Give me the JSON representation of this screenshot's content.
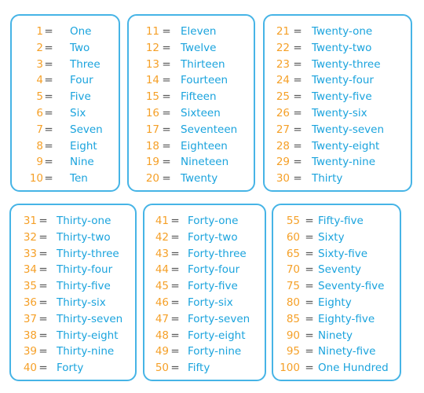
{
  "colors": {
    "border": "#46b4e6",
    "number": "#f5a028",
    "word": "#1aa3dd",
    "equals": "#555555"
  },
  "equals_sign": "=",
  "cards": [
    {
      "rows": [
        {
          "num": "1",
          "word": "One"
        },
        {
          "num": "2",
          "word": "Two"
        },
        {
          "num": "3",
          "word": "Three"
        },
        {
          "num": "4",
          "word": "Four"
        },
        {
          "num": "5",
          "word": "Five"
        },
        {
          "num": "6",
          "word": "Six"
        },
        {
          "num": "7",
          "word": "Seven"
        },
        {
          "num": "8",
          "word": "Eight"
        },
        {
          "num": "9",
          "word": "Nine"
        },
        {
          "num": "10",
          "word": "Ten"
        }
      ]
    },
    {
      "rows": [
        {
          "num": "11",
          "word": "Eleven"
        },
        {
          "num": "12",
          "word": "Twelve"
        },
        {
          "num": "13",
          "word": "Thirteen"
        },
        {
          "num": "14",
          "word": "Fourteen"
        },
        {
          "num": "15",
          "word": "Fifteen"
        },
        {
          "num": "16",
          "word": "Sixteen"
        },
        {
          "num": "17",
          "word": "Seventeen"
        },
        {
          "num": "18",
          "word": "Eighteen"
        },
        {
          "num": "19",
          "word": "Nineteen"
        },
        {
          "num": "20",
          "word": "Twenty"
        }
      ]
    },
    {
      "rows": [
        {
          "num": "21",
          "word": "Twenty-one"
        },
        {
          "num": "22",
          "word": "Twenty-two"
        },
        {
          "num": "23",
          "word": "Twenty-three"
        },
        {
          "num": "24",
          "word": "Twenty-four"
        },
        {
          "num": "25",
          "word": "Twenty-five"
        },
        {
          "num": "26",
          "word": "Twenty-six"
        },
        {
          "num": "27",
          "word": "Twenty-seven"
        },
        {
          "num": "28",
          "word": "Twenty-eight"
        },
        {
          "num": "29",
          "word": "Twenty-nine"
        },
        {
          "num": "30",
          "word": "Thirty"
        }
      ]
    },
    {
      "rows": [
        {
          "num": "31",
          "word": "Thirty-one"
        },
        {
          "num": "32",
          "word": "Thirty-two"
        },
        {
          "num": "33",
          "word": "Thirty-three"
        },
        {
          "num": "34",
          "word": "Thirty-four"
        },
        {
          "num": "35",
          "word": "Thirty-five"
        },
        {
          "num": "36",
          "word": "Thirty-six"
        },
        {
          "num": "37",
          "word": "Thirty-seven"
        },
        {
          "num": "38",
          "word": "Thirty-eight"
        },
        {
          "num": "39",
          "word": "Thirty-nine"
        },
        {
          "num": "40",
          "word": "Forty"
        }
      ]
    },
    {
      "rows": [
        {
          "num": "41",
          "word": "Forty-one"
        },
        {
          "num": "42",
          "word": "Forty-two"
        },
        {
          "num": "43",
          "word": "Forty-three"
        },
        {
          "num": "44",
          "word": "Forty-four"
        },
        {
          "num": "45",
          "word": "Forty-five"
        },
        {
          "num": "46",
          "word": "Forty-six"
        },
        {
          "num": "47",
          "word": "Forty-seven"
        },
        {
          "num": "48",
          "word": "Forty-eight"
        },
        {
          "num": "49",
          "word": "Forty-nine"
        },
        {
          "num": "50",
          "word": "Fifty"
        }
      ]
    },
    {
      "rows": [
        {
          "num": "55",
          "word": "Fifty-five"
        },
        {
          "num": "60",
          "word": "Sixty"
        },
        {
          "num": "65",
          "word": "Sixty-five"
        },
        {
          "num": "70",
          "word": "Seventy"
        },
        {
          "num": "75",
          "word": "Seventy-five"
        },
        {
          "num": "80",
          "word": "Eighty"
        },
        {
          "num": "85",
          "word": "Eighty-five"
        },
        {
          "num": "90",
          "word": "Ninety"
        },
        {
          "num": "95",
          "word": "Ninety-five"
        },
        {
          "num": "100",
          "word": "One Hundred"
        }
      ]
    }
  ]
}
